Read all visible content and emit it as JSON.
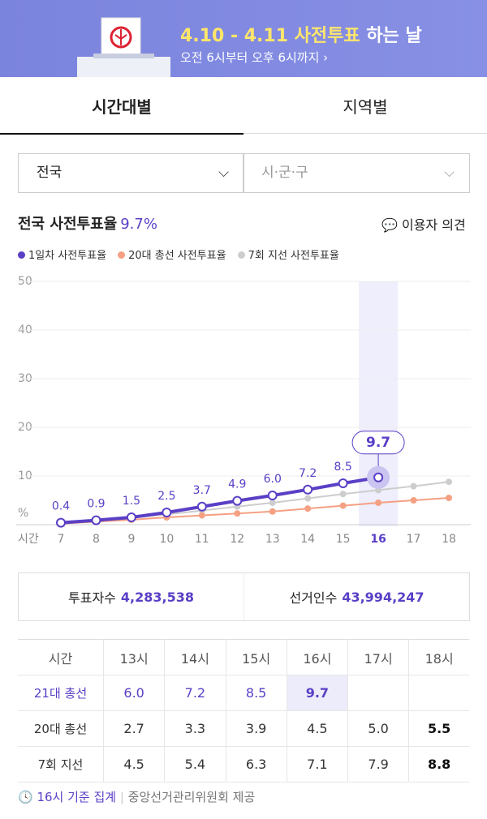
{
  "banner": {
    "title_highlight": "4.10 - 4.11 사전투표",
    "title_rest": "하는 날",
    "subtitle": "오전 6시부터 오후 6시까지"
  },
  "tabs": [
    "시간대별",
    "지역별"
  ],
  "filters": [
    "전국",
    "시·군·구"
  ],
  "headline": {
    "label": "전국 사전투표율",
    "value": "9.7%",
    "feedback": "이용자 의견"
  },
  "chart_data": {
    "type": "line",
    "xlabel": "시간",
    "x": [
      7,
      8,
      9,
      10,
      11,
      12,
      13,
      14,
      15,
      16,
      17,
      18
    ],
    "xlim": [
      7,
      18
    ],
    "xticks": [
      7,
      8,
      9,
      10,
      11,
      12,
      13,
      14,
      15,
      16,
      17,
      18
    ],
    "ylim": [
      0,
      50
    ],
    "yticks": [
      {
        "value": 0,
        "label": "%"
      },
      10,
      20,
      30,
      40,
      50
    ],
    "grid": true,
    "highlight": 16,
    "series": [
      {
        "name": "1일차 사전투표율",
        "color": "#5a3fc6",
        "values": [
          0.4,
          0.9,
          1.5,
          2.5,
          3.7,
          4.9,
          6.0,
          7.2,
          8.5,
          9.7,
          null,
          null
        ],
        "value_labels": [
          "0.4",
          "0.9",
          "1.5",
          "2.5",
          "3.7",
          "4.9",
          "6.0",
          "7.2",
          "8.5",
          "9.7",
          null,
          null
        ]
      },
      {
        "name": "20대 총선 사전투표율",
        "color": "#f5a083",
        "values": [
          0.2,
          0.6,
          1.0,
          1.5,
          1.9,
          2.3,
          2.7,
          3.3,
          3.9,
          4.5,
          5.0,
          5.5
        ]
      },
      {
        "name": "7회 지선 사전투표율",
        "color": "#cdcdcd",
        "values": [
          0.3,
          0.8,
          1.4,
          2.1,
          2.9,
          3.7,
          4.5,
          5.4,
          6.3,
          7.1,
          7.9,
          8.8
        ]
      }
    ]
  },
  "stats": [
    {
      "label": "투표자수",
      "value": "4,283,538"
    },
    {
      "label": "선거인수",
      "value": "43,994,247"
    }
  ],
  "table": {
    "header": [
      "시간",
      "13시",
      "14시",
      "15시",
      "16시",
      "17시",
      "18시"
    ],
    "rows": [
      [
        "21대 총선",
        "6.0",
        "7.2",
        "8.5",
        "9.7"
      ],
      [
        "20대 총선",
        "2.7",
        "3.3",
        "3.9",
        "4.5",
        "5.0",
        "5.5"
      ],
      [
        "7회 지선",
        "4.5",
        "5.4",
        "6.3",
        "7.1",
        "7.9",
        "8.8"
      ]
    ]
  },
  "footer": {
    "basis": "16시 기준 집계",
    "source": "중앙선거관리위원회 제공"
  }
}
